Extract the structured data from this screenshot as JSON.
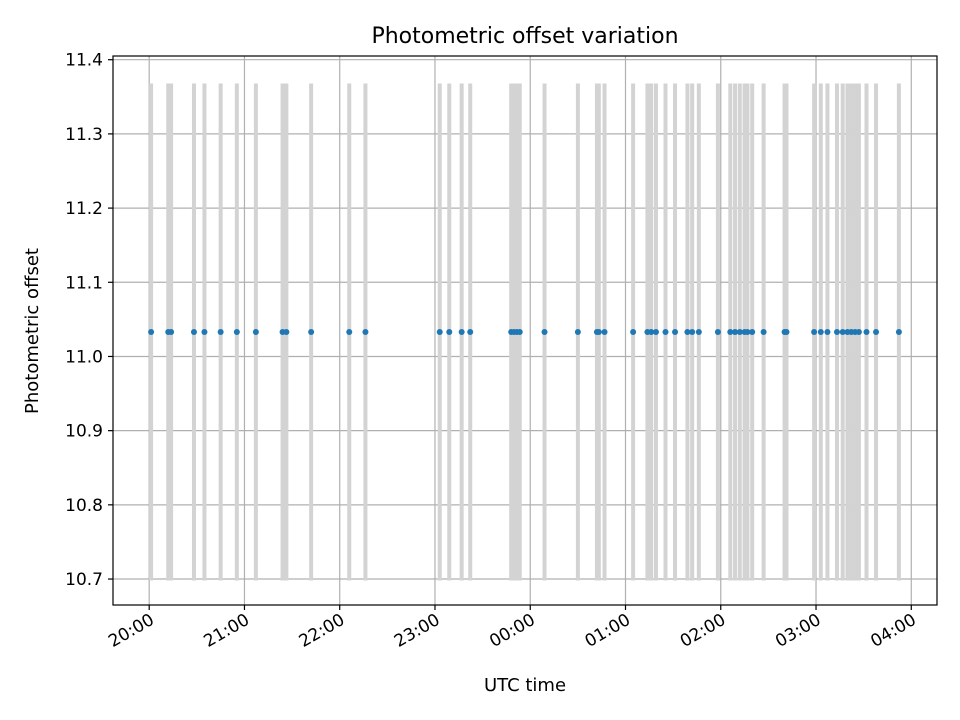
{
  "chart_data": {
    "type": "scatter",
    "title": "Photometric offset variation",
    "xlabel": "UTC time",
    "ylabel": "Photometric offset",
    "ylim": [
      10.665,
      11.405
    ],
    "xlim_hours": [
      19.62,
      28.27
    ],
    "yticks": [
      10.7,
      10.8,
      10.9,
      11.0,
      11.1,
      11.2,
      11.3,
      11.4
    ],
    "ytick_labels": [
      "10.7",
      "10.8",
      "10.9",
      "11.0",
      "11.1",
      "11.2",
      "11.3",
      "11.4"
    ],
    "xticks_hours": [
      20,
      21,
      22,
      23,
      24,
      25,
      26,
      27,
      28
    ],
    "xtick_labels": [
      "20:00",
      "21:00",
      "22:00",
      "23:00",
      "00:00",
      "01:00",
      "02:00",
      "03:00",
      "04:00"
    ],
    "grid": true,
    "marker_color": "#1f77b4",
    "errorbar_color": "#d3d3d3",
    "value": 11.033,
    "error_low": 10.698,
    "error_high": 11.368,
    "x_hours": [
      20.02,
      20.2,
      20.23,
      20.47,
      20.58,
      20.75,
      20.92,
      21.12,
      21.4,
      21.44,
      21.7,
      22.1,
      22.27,
      23.05,
      23.15,
      23.28,
      23.37,
      23.8,
      23.83,
      23.86,
      23.89,
      24.15,
      24.5,
      24.7,
      24.72,
      24.78,
      25.08,
      25.23,
      25.27,
      25.32,
      25.42,
      25.52,
      25.65,
      25.7,
      25.77,
      25.97,
      26.1,
      26.15,
      26.2,
      26.25,
      26.28,
      26.33,
      26.45,
      26.67,
      26.69,
      26.98,
      27.05,
      27.12,
      27.22,
      27.28,
      27.33,
      27.37,
      27.41,
      27.45,
      27.53,
      27.63,
      27.87
    ]
  }
}
